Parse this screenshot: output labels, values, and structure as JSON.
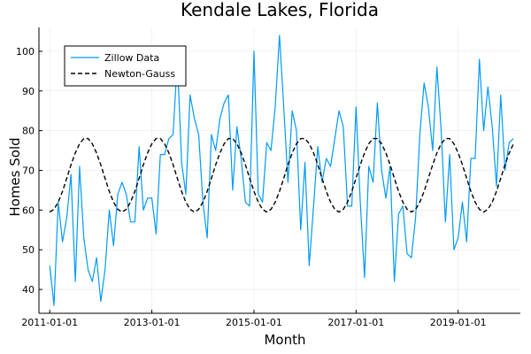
{
  "chart_data": {
    "type": "line",
    "title": "Kendale Lakes, Florida",
    "xlabel": "Month",
    "ylabel": "Homes Sold",
    "x_ticks": [
      "2011-01-01",
      "2013-01-01",
      "2015-01-01",
      "2017-01-01",
      "2019-01-01"
    ],
    "y_ticks": [
      40,
      50,
      60,
      70,
      80,
      90,
      100
    ],
    "xlim": [
      "2010-10-15",
      "2020-03-20"
    ],
    "ylim": [
      34,
      106
    ],
    "grid": true,
    "legend_position": "top-left",
    "series": [
      {
        "name": "Zillow Data",
        "color": "#009AFA",
        "style": "solid",
        "start": "2011-01",
        "values": [
          46,
          36,
          62,
          52,
          58,
          69,
          42,
          71,
          53,
          45,
          42,
          48,
          37,
          45,
          60,
          51,
          64,
          67,
          64,
          57,
          57,
          76,
          60,
          63,
          63,
          54,
          74,
          74,
          78,
          79,
          98,
          72,
          64,
          89,
          83,
          79,
          62,
          53,
          79,
          75,
          83,
          87,
          89,
          65,
          81,
          73,
          62,
          61,
          100,
          64,
          62,
          77,
          75,
          86,
          104,
          86,
          67,
          85,
          80,
          55,
          72,
          46,
          61,
          76,
          67,
          73,
          71,
          78,
          85,
          81,
          61,
          61,
          86,
          62,
          43,
          71,
          67,
          87,
          70,
          63,
          71,
          42,
          59,
          61,
          49,
          48,
          58,
          79,
          92,
          86,
          75,
          96,
          80,
          57,
          74,
          50,
          53,
          62,
          52,
          73,
          73,
          98,
          80,
          91,
          81,
          66,
          89,
          70,
          77,
          78
        ]
      },
      {
        "name": "Newton-Gauss",
        "color": "#000000",
        "style": "dashed",
        "start": "2011-01",
        "model": "68.5 + 9.1*sin(2*pi*(t - 2011.0)/2 - pi/2) mirrored",
        "values": [
          59.5,
          60.2,
          62.0,
          64.7,
          68.0,
          71.4,
          74.4,
          76.7,
          78.0,
          78.0,
          76.7,
          74.4,
          71.4,
          68.0,
          64.7,
          62.0,
          60.2,
          59.5,
          60.2,
          62.0,
          64.7,
          68.0,
          71.4,
          74.4,
          76.7,
          78.0,
          78.0,
          76.7,
          74.4,
          71.4,
          68.0,
          64.7,
          62.0,
          60.2,
          59.5,
          60.2,
          62.0,
          64.7,
          68.0,
          71.4,
          74.4,
          76.7,
          78.0,
          78.0,
          76.7,
          74.4,
          71.4,
          68.0,
          64.7,
          62.0,
          60.2,
          59.5,
          60.2,
          62.0,
          64.7,
          68.0,
          71.4,
          74.4,
          76.7,
          78.0,
          78.0,
          76.7,
          74.4,
          71.4,
          68.0,
          64.7,
          62.0,
          60.2,
          59.5,
          60.2,
          62.0,
          64.7,
          68.0,
          71.4,
          74.4,
          76.7,
          78.0,
          78.0,
          76.7,
          74.4,
          71.4,
          68.0,
          64.7,
          62.0,
          60.2,
          59.5,
          60.2,
          62.0,
          64.7,
          68.0,
          71.4,
          74.4,
          76.7,
          78.0,
          78.0,
          76.7,
          74.4,
          71.4,
          68.0,
          64.7,
          62.0,
          60.2,
          59.5,
          60.2,
          62.0,
          64.7,
          68.0,
          71.4,
          74.4,
          76.7
        ]
      }
    ]
  }
}
